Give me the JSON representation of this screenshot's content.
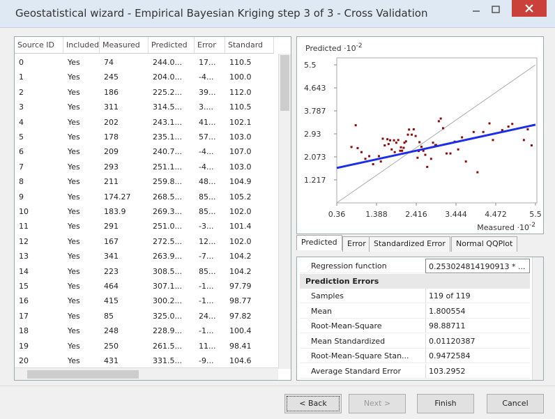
{
  "window": {
    "title": "Geostatistical wizard - Empirical Bayesian Kriging step 3 of 3 - Cross Validation"
  },
  "table": {
    "columns": [
      "Source ID",
      "Included",
      "Measured",
      "Predicted",
      "Error",
      "Standard"
    ],
    "rows": [
      [
        "0",
        "Yes",
        "74",
        "244.0...",
        "17...",
        "110.5"
      ],
      [
        "1",
        "Yes",
        "245",
        "204.0...",
        "-4...",
        "100.0"
      ],
      [
        "2",
        "Yes",
        "186",
        "225.2...",
        "39...",
        "112.0"
      ],
      [
        "3",
        "Yes",
        "311",
        "314.5...",
        "3....",
        "110.5"
      ],
      [
        "4",
        "Yes",
        "202",
        "243.1...",
        "41...",
        "102.1"
      ],
      [
        "5",
        "Yes",
        "178",
        "235.1...",
        "57...",
        "103.0"
      ],
      [
        "6",
        "Yes",
        "209",
        "240.7...",
        "-4...",
        "107.0"
      ],
      [
        "7",
        "Yes",
        "293",
        "251.1...",
        "-4...",
        "103.0"
      ],
      [
        "8",
        "Yes",
        "211",
        "259.8...",
        "48...",
        "104.9"
      ],
      [
        "9",
        "Yes",
        "174.27",
        "268.5...",
        "85...",
        "105.2"
      ],
      [
        "10",
        "Yes",
        "183.9",
        "269.3...",
        "85...",
        "102.0"
      ],
      [
        "11",
        "Yes",
        "291",
        "251.0...",
        "-3...",
        "101.4"
      ],
      [
        "12",
        "Yes",
        "167",
        "272.5...",
        "12...",
        "102.0"
      ],
      [
        "13",
        "Yes",
        "341",
        "263.9...",
        "-7...",
        "104.2"
      ],
      [
        "14",
        "Yes",
        "223",
        "308.5...",
        "85...",
        "104.2"
      ],
      [
        "15",
        "Yes",
        "464",
        "307.1...",
        "-1...",
        "97.79"
      ],
      [
        "16",
        "Yes",
        "415",
        "300.2...",
        "-1...",
        "98.77"
      ],
      [
        "17",
        "Yes",
        "85",
        "325.0...",
        "24...",
        "97.82"
      ],
      [
        "18",
        "Yes",
        "248",
        "228.9...",
        "-1...",
        "100.4"
      ],
      [
        "19",
        "Yes",
        "250",
        "261.5...",
        "11...",
        "98.41"
      ],
      [
        "20",
        "Yes",
        "431",
        "331.5...",
        "-9...",
        "104.6"
      ]
    ]
  },
  "plot": {
    "type": "scatter",
    "y_label": "Predicted ·10",
    "y_label_power": "-2",
    "x_label": "Measured ·10",
    "x_label_power": "-2",
    "xlim": [
      0.36,
      5.5
    ],
    "ylim": [
      0.36,
      5.5
    ],
    "xticks": [
      0.36,
      1.388,
      2.416,
      3.444,
      4.472,
      5.5
    ],
    "yticks": [
      1.217,
      2.073,
      2.93,
      3.787,
      4.643,
      5.5
    ],
    "point_color": "#8b0a0a",
    "line_color": "#1c2fe6",
    "points_x": [
      0.74,
      2.45,
      1.86,
      3.11,
      2.02,
      1.78,
      2.09,
      2.93,
      2.11,
      1.74,
      1.84,
      2.91,
      1.67,
      3.41,
      2.23,
      4.64,
      4.15,
      0.85,
      2.48,
      2.5,
      4.31,
      1.2,
      1.5,
      1.9,
      2.2,
      2.6,
      2.8,
      3.0,
      3.3,
      3.6,
      3.9,
      4.8,
      5.2,
      5.4,
      1.3,
      1.6,
      1.95,
      2.35,
      2.7,
      3.2,
      0.9,
      1.1,
      2.0,
      2.3,
      2.55,
      3.5,
      4.0,
      4.9,
      5.3,
      1.45,
      1.7,
      2.15,
      2.65,
      3.05,
      1.55,
      2.05,
      2.4,
      2.85,
      1.0,
      3.7,
      4.4
    ],
    "points_y": [
      2.44,
      2.04,
      2.25,
      3.14,
      2.43,
      2.35,
      2.41,
      2.51,
      2.6,
      2.69,
      2.69,
      2.51,
      2.73,
      2.64,
      3.09,
      3.07,
      3.0,
      3.25,
      2.29,
      2.62,
      3.32,
      2.1,
      1.9,
      2.6,
      2.9,
      2.3,
      2.0,
      3.4,
      2.2,
      2.8,
      3.0,
      3.2,
      2.7,
      2.5,
      1.8,
      2.5,
      2.7,
      3.1,
      1.7,
      2.2,
      2.4,
      2.0,
      2.3,
      2.9,
      2.45,
      2.35,
      1.5,
      3.3,
      3.1,
      2.1,
      2.55,
      2.65,
      2.15,
      3.5,
      2.75,
      2.3,
      2.85,
      2.6,
      2.25,
      1.9,
      2.7
    ],
    "regression_x": [
      0.36,
      5.5
    ],
    "regression_y": [
      1.66,
      3.27
    ]
  },
  "tabs": [
    "Predicted",
    "Error",
    "Standardized Error",
    "Normal QQPlot"
  ],
  "properties": {
    "top_rows": [
      [
        "Regression function",
        "0.253024814190913 * ..."
      ]
    ],
    "section": "Prediction Errors",
    "rows": [
      [
        "Samples",
        "119 of 119"
      ],
      [
        "Mean",
        "1.800554"
      ],
      [
        "Root-Mean-Square",
        "98.88711"
      ],
      [
        "Mean Standardized",
        "0.01120387"
      ],
      [
        "Root-Mean-Square Stan...",
        "0.9472584"
      ],
      [
        "Average Standard Error",
        "103.2952"
      ]
    ]
  },
  "buttons": [
    "< Back",
    "Next >",
    "Finish",
    "Cancel"
  ]
}
